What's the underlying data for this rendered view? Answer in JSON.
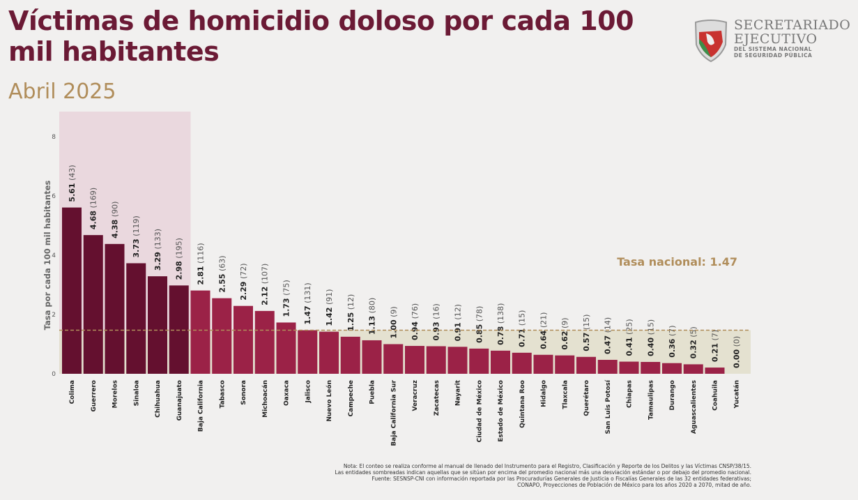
{
  "header": {
    "title": "Víctimas de homicidio doloso por cada 100 mil habitantes",
    "subtitle": "Abril 2025"
  },
  "logo": {
    "line1": "SECRETARIADO",
    "line2": "EJECUTIVO",
    "line3": "DEL SISTEMA NACIONAL",
    "line4": "DE SEGURIDAD PÚBLICA"
  },
  "colors": {
    "title": "#6b1a35",
    "subtitle": "#b08d5a",
    "bar_high": "#64102f",
    "bar_normal": "#9b2247",
    "highlight_band": "#e9d2da",
    "low_band": "#e2dfcc",
    "national_line": "#b08d5a"
  },
  "chart_data": {
    "type": "bar",
    "ylabel": "Tasa por cada 100 mil habitantes",
    "ylim": [
      0,
      8.8
    ],
    "yticks": [
      0,
      2,
      4,
      6,
      8
    ],
    "grid": false,
    "reference_line": {
      "label": "Tasa nacional: 1.47",
      "value": 1.47
    },
    "categories": [
      "Colima",
      "Guerrero",
      "Morelos",
      "Sinaloa",
      "Chihuahua",
      "Guanajuato",
      "Baja California",
      "Tabasco",
      "Sonora",
      "Michoacán",
      "Oaxaca",
      "Jalisco",
      "Nuevo León",
      "Campeche",
      "Puebla",
      "Baja California Sur",
      "Veracruz",
      "Zacatecas",
      "Nayarit",
      "Ciudad de México",
      "Estado de México",
      "Quintana Roo",
      "Hidalgo",
      "Tlaxcala",
      "Querétaro",
      "San Luis Potosí",
      "Chiapas",
      "Tamaulipas",
      "Durango",
      "Aguascalientes",
      "Coahuila",
      "Yucatán"
    ],
    "values": [
      5.61,
      4.68,
      4.38,
      3.73,
      3.29,
      2.98,
      2.81,
      2.55,
      2.29,
      2.12,
      1.73,
      1.47,
      1.42,
      1.25,
      1.13,
      1.0,
      0.94,
      0.93,
      0.91,
      0.85,
      0.78,
      0.71,
      0.64,
      0.62,
      0.57,
      0.47,
      0.41,
      0.4,
      0.36,
      0.32,
      0.21,
      0.0
    ],
    "value_labels": [
      "5.61",
      "4.68",
      "4.38",
      "3.73",
      "3.29",
      "2.98",
      "2.81",
      "2.55",
      "2.29",
      "2.12",
      "1.73",
      "1.47",
      "1.42",
      "1.25",
      "1.13",
      "1.00",
      "0.94",
      "0.93",
      "0.91",
      "0.85",
      "0.78",
      "0.71",
      "0.64",
      "0.62",
      "0.57",
      "0.47",
      "0.41",
      "0.40",
      "0.36",
      "0.32",
      "0.21",
      "0.00"
    ],
    "victims": [
      "(43)",
      "(169)",
      "(90)",
      "(119)",
      "(133)",
      "(195)",
      "(116)",
      "(63)",
      "(72)",
      "(107)",
      "(75)",
      "(131)",
      "(91)",
      "(12)",
      "(80)",
      "(9)",
      "(76)",
      "(16)",
      "(12)",
      "(78)",
      "(138)",
      "(15)",
      "(21)",
      "(9)",
      "(15)",
      "(14)",
      "(25)",
      "(15)",
      "(7)",
      "(5)",
      "(7)",
      "(0)"
    ],
    "highlighted_high_count": 6
  },
  "notes": [
    "Nota: El conteo se realiza conforme al manual de llenado del Instrumento para el Registro, Clasificación y Reporte de los Delitos y las Víctimas CNSP/38/15.",
    "Las entidades sombreadas indican aquellas que se sitúan por encima del promedio nacional más una desviación estándar o por debajo del promedio nacional.",
    "Fuente: SESNSP-CNI con información reportada por las Procuradurías Generales de Justicia o Fiscalías Generales de las 32 entidades federativas;",
    "CONAPO, Proyecciones de Población de México para los años 2020 a 2070, mitad de año."
  ]
}
